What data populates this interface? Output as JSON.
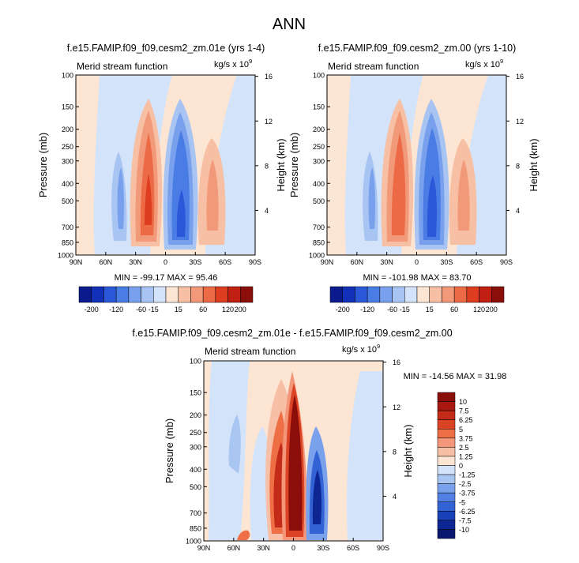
{
  "figure": {
    "title": "ANN"
  },
  "colors": {
    "top_scale": [
      "#0b1a8c",
      "#1230b8",
      "#2a58d8",
      "#4a7ce6",
      "#78a0ec",
      "#a8c4f2",
      "#d3e3f9",
      "#fde5d4",
      "#f7c0a4",
      "#f2997a",
      "#ec6b46",
      "#de3d1f",
      "#c01f12",
      "#8b0e0a"
    ],
    "diff_scale": [
      "#8b0e0a",
      "#a81810",
      "#c32a17",
      "#da4425",
      "#ee6e45",
      "#f3967a",
      "#f7bfa6",
      "#fde5d4",
      "#d3e3f9",
      "#a9c5f2",
      "#7aa2ec",
      "#5180e2",
      "#3262d4",
      "#1a42b8",
      "#0e2694",
      "#081870"
    ]
  },
  "panels": [
    {
      "title": "f.e15.FAMIP.f09_f09.cesm2_zm.01e (yrs 1-4)",
      "subtitle": "Merid stream function",
      "units_base": "kg/s x 10",
      "units_exp": "9",
      "stats": "MIN = -99.17  MAX = 95.46",
      "ylabel": "Pressure (mb)",
      "ylabel_right": "Height (km)"
    },
    {
      "title": "f.e15.FAMIP.f09_f09.cesm2_zm.00 (yrs 1-10)",
      "subtitle": "Merid stream function",
      "units_base": "kg/s x 10",
      "units_exp": "9",
      "stats": "MIN = -101.98  MAX = 83.70",
      "ylabel": "Pressure (mb)",
      "ylabel_right": "Height (km)"
    },
    {
      "title": "f.e15.FAMIP.f09_f09.cesm2_zm.01e - f.e15.FAMIP.f09_f09.cesm2_zm.00",
      "subtitle": "Merid stream function",
      "units_base": "kg/s x 10",
      "units_exp": "9",
      "stats": "MIN = -14.56  MAX = 31.98",
      "ylabel": "Pressure (mb)",
      "ylabel_right": "Height (km)"
    }
  ],
  "chart_data": [
    {
      "type": "heatmap",
      "title": "f.e15.FAMIP.f09_f09.cesm2_zm.01e (yrs 1-4)",
      "variable": "Merid stream function",
      "units": "kg/s x 10^9",
      "x_ticks": [
        "90N",
        "60N",
        "30N",
        "0",
        "30S",
        "60S",
        "90S"
      ],
      "x_values": [
        90,
        60,
        30,
        0,
        -30,
        -60,
        -90
      ],
      "y_ticks": [
        "100",
        "150",
        "200",
        "250",
        "300",
        "400",
        "500",
        "700",
        "850",
        "1000"
      ],
      "y_values": [
        100,
        150,
        200,
        250,
        300,
        400,
        500,
        700,
        850,
        1000
      ],
      "y2_ticks": [
        "16",
        "12",
        "8",
        "4"
      ],
      "ylim": [
        1000,
        100
      ],
      "min": -99.17,
      "max": 95.46,
      "features": [
        {
          "lat": 15,
          "p": 550,
          "value": 90
        },
        {
          "lat": -8,
          "p": 600,
          "value": -99
        },
        {
          "lat": -45,
          "p": 450,
          "value": 45
        },
        {
          "lat": 48,
          "p": 450,
          "value": -25
        }
      ]
    },
    {
      "type": "heatmap",
      "title": "f.e15.FAMIP.f09_f09.cesm2_zm.00 (yrs 1-10)",
      "variable": "Merid stream function",
      "units": "kg/s x 10^9",
      "x_ticks": [
        "90N",
        "60N",
        "30N",
        "0",
        "30S",
        "60S",
        "90S"
      ],
      "x_values": [
        90,
        60,
        30,
        0,
        -30,
        -60,
        -90
      ],
      "y_ticks": [
        "100",
        "150",
        "200",
        "250",
        "300",
        "400",
        "500",
        "700",
        "850",
        "1000"
      ],
      "y_values": [
        100,
        150,
        200,
        250,
        300,
        400,
        500,
        700,
        850,
        1000
      ],
      "y2_ticks": [
        "16",
        "12",
        "8",
        "4"
      ],
      "ylim": [
        1000,
        100
      ],
      "min": -101.98,
      "max": 83.7,
      "features": [
        {
          "lat": 15,
          "p": 550,
          "value": 82
        },
        {
          "lat": -8,
          "p": 600,
          "value": -101
        },
        {
          "lat": -45,
          "p": 450,
          "value": 40
        },
        {
          "lat": 48,
          "p": 450,
          "value": -25
        }
      ]
    },
    {
      "type": "heatmap",
      "title": "f.e15.FAMIP.f09_f09.cesm2_zm.01e - f.e15.FAMIP.f09_f09.cesm2_zm.00",
      "variable": "Merid stream function",
      "units": "kg/s x 10^9",
      "x_ticks": [
        "90N",
        "60N",
        "30N",
        "0",
        "30S",
        "60S",
        "90S"
      ],
      "x_values": [
        90,
        60,
        30,
        0,
        -30,
        -60,
        -90
      ],
      "y_ticks": [
        "100",
        "150",
        "200",
        "250",
        "300",
        "400",
        "500",
        "700",
        "850",
        "1000"
      ],
      "y_values": [
        100,
        150,
        200,
        250,
        300,
        400,
        500,
        700,
        850,
        1000
      ],
      "y2_ticks": [
        "16",
        "12",
        "8",
        "4"
      ],
      "ylim": [
        1000,
        100
      ],
      "min": -14.56,
      "max": 31.98,
      "features": [
        {
          "lat": 2,
          "p": 500,
          "value": 31.98
        },
        {
          "lat": 18,
          "p": 600,
          "value": 10
        },
        {
          "lat": -15,
          "p": 600,
          "value": -14.56
        },
        {
          "lat": 35,
          "p": 600,
          "value": -4
        }
      ]
    }
  ],
  "colorbar_top": {
    "labels": [
      "-200",
      "-120",
      "-60",
      "-15",
      "15",
      "60",
      "120",
      "200"
    ]
  },
  "colorbar_diff": {
    "labels": [
      "10",
      "7.5",
      "6.25",
      "5",
      "3.75",
      "2.5",
      "1.25",
      "0",
      "-1.25",
      "-2.5",
      "-3.75",
      "-5",
      "-6.25",
      "-7.5",
      "-10"
    ]
  }
}
